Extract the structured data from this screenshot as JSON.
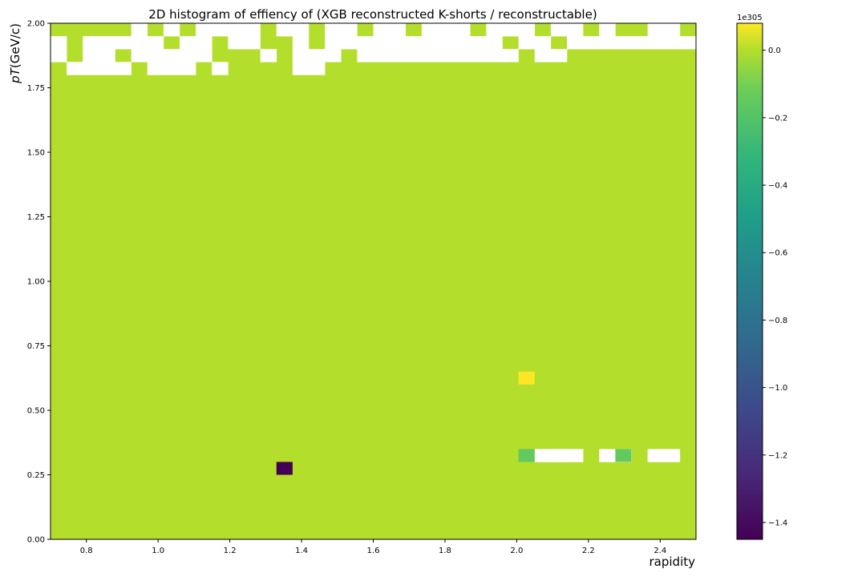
{
  "chart_data": {
    "type": "heatmap",
    "title": "2D histogram of effiency of (XGB reconstructed K-shorts / reconstructable)",
    "xlabel": "rapidity",
    "ylabel": "pT(GeV/c)",
    "xlim": [
      0.7,
      2.5
    ],
    "ylim": [
      0.0,
      2.0
    ],
    "x_bins": 40,
    "y_bins": 40,
    "x_ticks": [
      0.8,
      1.0,
      1.2,
      1.4,
      1.6,
      1.8,
      2.0,
      2.2,
      2.4
    ],
    "x_tick_labels": [
      "0.8",
      "1.0",
      "1.2",
      "1.4",
      "1.6",
      "1.8",
      "2.0",
      "2.2",
      "2.4"
    ],
    "y_ticks": [
      0.0,
      0.25,
      0.5,
      0.75,
      1.0,
      1.25,
      1.5,
      1.75,
      2.0
    ],
    "y_tick_labels": [
      "0.00",
      "0.25",
      "0.50",
      "0.75",
      "1.00",
      "1.25",
      "1.50",
      "1.75",
      "2.00"
    ],
    "colormap": "viridis",
    "colorbar": {
      "offset_label": "1e305",
      "min": -1.45,
      "max": 0.08,
      "ticks": [
        0.0,
        -0.2,
        -0.4,
        -0.6,
        -0.8,
        -1.0,
        -1.2,
        -1.4
      ],
      "tick_labels": [
        "0.0",
        "−0.2",
        "−0.4",
        "−0.6",
        "−0.8",
        "−1.0",
        "−1.2",
        "−1.4"
      ]
    },
    "background_value": 0.0,
    "cells": [
      {
        "x": 1.3625,
        "y": 0.275,
        "value": -1.45
      },
      {
        "x": 2.0125,
        "y": 0.625,
        "value": 0.08
      },
      {
        "x": 2.0375,
        "y": 0.325,
        "value": -0.15
      },
      {
        "x": 2.2875,
        "y": 0.325,
        "value": -0.15
      }
    ],
    "empty_cells": [
      {
        "x": 2.0875,
        "y": 0.325
      },
      {
        "x": 2.1125,
        "y": 0.325
      },
      {
        "x": 2.1375,
        "y": 0.325
      },
      {
        "x": 2.1625,
        "y": 0.325
      },
      {
        "x": 2.2375,
        "y": 0.325
      },
      {
        "x": 2.3125,
        "y": 0.325
      },
      {
        "x": 2.3875,
        "y": 0.325
      },
      {
        "x": 2.4125,
        "y": 0.325
      }
    ]
  }
}
